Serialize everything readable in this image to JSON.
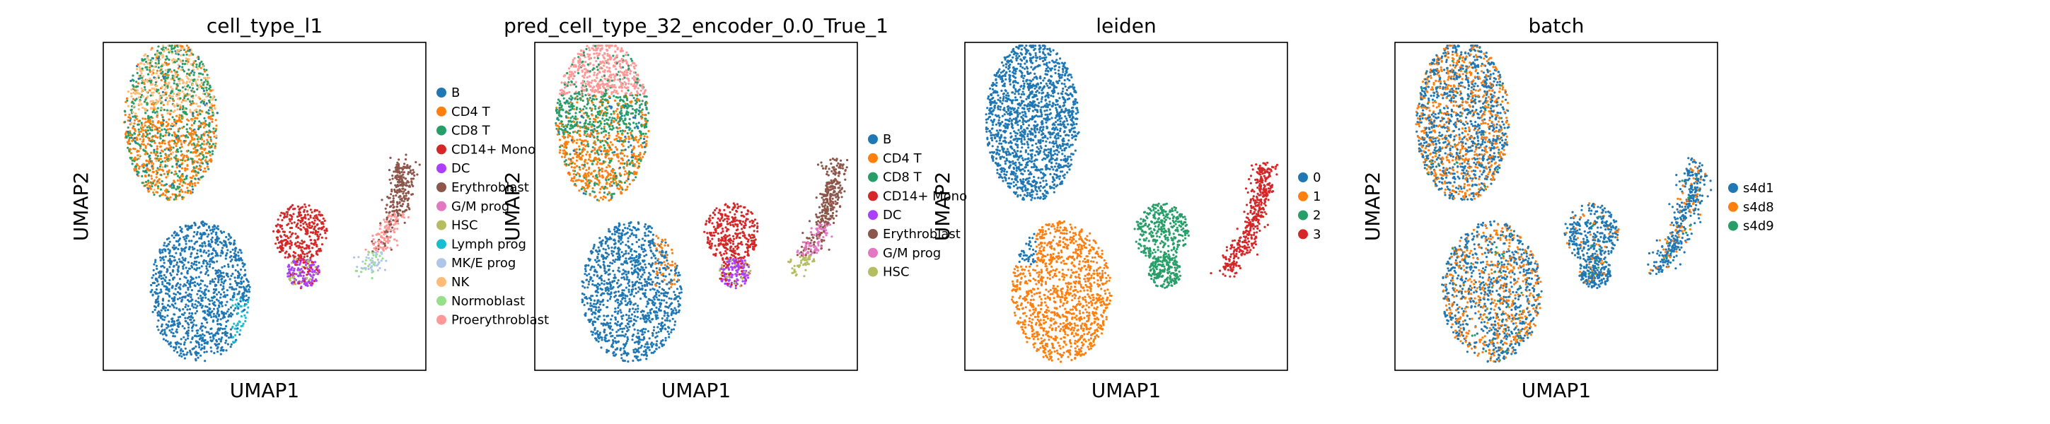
{
  "chart_data": [
    {
      "type": "scatter",
      "title": "cell_type_l1",
      "xlabel": "UMAP1",
      "ylabel": "UMAP2",
      "grid": false,
      "legend_placement": "right",
      "series": [
        {
          "name": "B",
          "color": "#1f77b4"
        },
        {
          "name": "CD4 T",
          "color": "#ff7f0e"
        },
        {
          "name": "CD8 T",
          "color": "#279e68"
        },
        {
          "name": "CD14+ Mono",
          "color": "#d62728"
        },
        {
          "name": "DC",
          "color": "#aa40fc"
        },
        {
          "name": "Erythroblast",
          "color": "#8c564b"
        },
        {
          "name": "G/M prog",
          "color": "#e377c2"
        },
        {
          "name": "HSC",
          "color": "#b5bd61"
        },
        {
          "name": "Lymph prog",
          "color": "#17becf"
        },
        {
          "name": "MK/E prog",
          "color": "#aec7e8"
        },
        {
          "name": "NK",
          "color": "#ffbb78"
        },
        {
          "name": "Normoblast",
          "color": "#98df8a"
        },
        {
          "name": "Proerythroblast",
          "color": "#ff9896"
        }
      ]
    },
    {
      "type": "scatter",
      "title": "pred_cell_type_32_encoder_0.0_True_1",
      "xlabel": "UMAP1",
      "ylabel": "UMAP2",
      "grid": false,
      "legend_placement": "right",
      "series": [
        {
          "name": "B",
          "color": "#1f77b4"
        },
        {
          "name": "CD4 T",
          "color": "#ff7f0e"
        },
        {
          "name": "CD8 T",
          "color": "#279e68"
        },
        {
          "name": "CD14+ Mono",
          "color": "#d62728"
        },
        {
          "name": "DC",
          "color": "#aa40fc"
        },
        {
          "name": "Erythroblast",
          "color": "#8c564b"
        },
        {
          "name": "G/M prog",
          "color": "#e377c2"
        },
        {
          "name": "HSC",
          "color": "#b5bd61"
        }
      ]
    },
    {
      "type": "scatter",
      "title": "leiden",
      "xlabel": "UMAP1",
      "ylabel": "UMAP2",
      "grid": false,
      "legend_placement": "right",
      "series": [
        {
          "name": "0",
          "color": "#1f77b4"
        },
        {
          "name": "1",
          "color": "#ff7f0e"
        },
        {
          "name": "2",
          "color": "#279e68"
        },
        {
          "name": "3",
          "color": "#d62728"
        }
      ]
    },
    {
      "type": "scatter",
      "title": "batch",
      "xlabel": "UMAP1",
      "ylabel": "UMAP2",
      "grid": false,
      "legend_placement": "right",
      "series": [
        {
          "name": "s4d1",
          "color": "#1f77b4"
        },
        {
          "name": "s4d8",
          "color": "#ff7f0e"
        },
        {
          "name": "s4d9",
          "color": "#279e68"
        }
      ]
    }
  ]
}
